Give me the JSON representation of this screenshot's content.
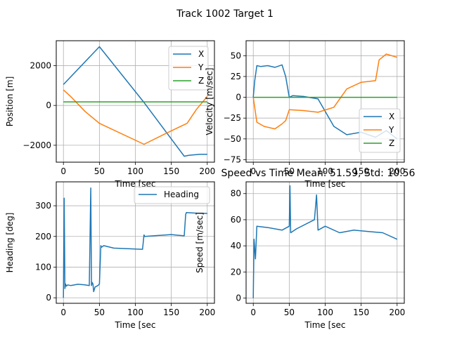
{
  "figure": {
    "suptitle": "Track 1002 Target 1",
    "colors": {
      "X": "#1f77b4",
      "Y": "#ff7f0e",
      "Z": "#2ca02c",
      "grid": "#b0b0b0"
    }
  },
  "chart_data": [
    {
      "type": "line",
      "title": "",
      "xlabel": "Time [sec",
      "ylabel": "Position [m]",
      "xlim": [
        -10,
        210
      ],
      "ylim": [
        -2850,
        3250
      ],
      "xticks": [
        0,
        50,
        100,
        150,
        200
      ],
      "yticks": [
        -2000,
        0,
        2000
      ],
      "grid": true,
      "legend": "top-right",
      "series": [
        {
          "name": "X",
          "color": "#1f77b4",
          "x": [
            0,
            50,
            112,
            168,
            175,
            190,
            200
          ],
          "y": [
            1050,
            2950,
            150,
            -2550,
            -2500,
            -2450,
            -2450
          ]
        },
        {
          "name": "Y",
          "color": "#ff7f0e",
          "x": [
            0,
            10,
            30,
            50,
            112,
            140,
            160,
            172,
            185,
            200
          ],
          "y": [
            780,
            450,
            -300,
            -900,
            -1950,
            -1450,
            -1100,
            -900,
            -200,
            450
          ]
        },
        {
          "name": "Z",
          "color": "#2ca02c",
          "x": [
            0,
            200
          ],
          "y": [
            180,
            180
          ]
        }
      ]
    },
    {
      "type": "line",
      "title": "",
      "xlabel": "Time [sec",
      "ylabel": "Velocity [m/sec]",
      "xlim": [
        -10,
        210
      ],
      "ylim": [
        -78,
        68
      ],
      "xticks": [
        0,
        50,
        100,
        150,
        200
      ],
      "yticks": [
        -75,
        -50,
        -25,
        0,
        25,
        50
      ],
      "grid": true,
      "legend": "lower-right",
      "series": [
        {
          "name": "X",
          "color": "#1f77b4",
          "x": [
            0,
            2,
            5,
            10,
            20,
            30,
            40,
            45,
            50,
            55,
            70,
            90,
            112,
            130,
            150,
            170,
            185,
            200
          ],
          "y": [
            0,
            20,
            38,
            37,
            38,
            36,
            39,
            25,
            0,
            2,
            1,
            -2,
            -35,
            -45,
            -42,
            -48,
            -40,
            -50
          ]
        },
        {
          "name": "Y",
          "color": "#ff7f0e",
          "x": [
            0,
            5,
            15,
            30,
            40,
            45,
            50,
            70,
            90,
            112,
            130,
            150,
            170,
            175,
            185,
            200
          ],
          "y": [
            0,
            -30,
            -35,
            -38,
            -32,
            -28,
            -15,
            -16,
            -18,
            -12,
            10,
            18,
            20,
            45,
            52,
            48
          ]
        },
        {
          "name": "Z",
          "color": "#2ca02c",
          "x": [
            0,
            200
          ],
          "y": [
            0,
            0
          ]
        }
      ]
    },
    {
      "type": "line",
      "title": "",
      "xlabel": "Time [sec",
      "ylabel": "Heading [deg]",
      "xlim": [
        -10,
        210
      ],
      "ylim": [
        -18,
        378
      ],
      "xticks": [
        0,
        50,
        100,
        150,
        200
      ],
      "yticks": [
        0,
        100,
        200,
        300
      ],
      "grid": true,
      "legend": "top-right",
      "series": [
        {
          "name": "Heading",
          "color": "#1f77b4",
          "x": [
            0,
            1,
            2,
            3,
            4,
            6,
            10,
            20,
            30,
            36,
            38,
            39,
            40,
            41,
            42,
            44,
            48,
            50,
            52,
            53,
            56,
            70,
            90,
            110,
            112,
            113,
            130,
            150,
            168,
            170,
            171,
            185,
            200
          ],
          "y": [
            0,
            325,
            30,
            45,
            38,
            42,
            40,
            44,
            42,
            40,
            358,
            40,
            50,
            45,
            20,
            35,
            40,
            45,
            170,
            165,
            170,
            162,
            160,
            158,
            205,
            200,
            203,
            206,
            202,
            272,
            278,
            276,
            275
          ]
        }
      ]
    },
    {
      "type": "line",
      "title": "Speed vs Time Mean: 51.59, Std: 10.56",
      "xlabel": "Time [sec",
      "ylabel": "Speed [m/sec]",
      "xlim": [
        -10,
        210
      ],
      "ylim": [
        -4,
        89
      ],
      "xticks": [
        0,
        50,
        100,
        150,
        200
      ],
      "yticks": [
        0,
        20,
        40,
        60,
        80
      ],
      "grid": true,
      "legend": "none",
      "series": [
        {
          "name": "",
          "color": "#1f77b4",
          "x": [
            0,
            1,
            3,
            5,
            20,
            40,
            50,
            51,
            52,
            60,
            85,
            88,
            90,
            100,
            120,
            140,
            160,
            180,
            200
          ],
          "y": [
            0,
            45,
            30,
            55,
            54,
            52,
            55,
            86,
            50,
            53,
            60,
            79,
            52,
            55,
            50,
            52,
            51,
            50,
            45
          ]
        }
      ]
    }
  ]
}
